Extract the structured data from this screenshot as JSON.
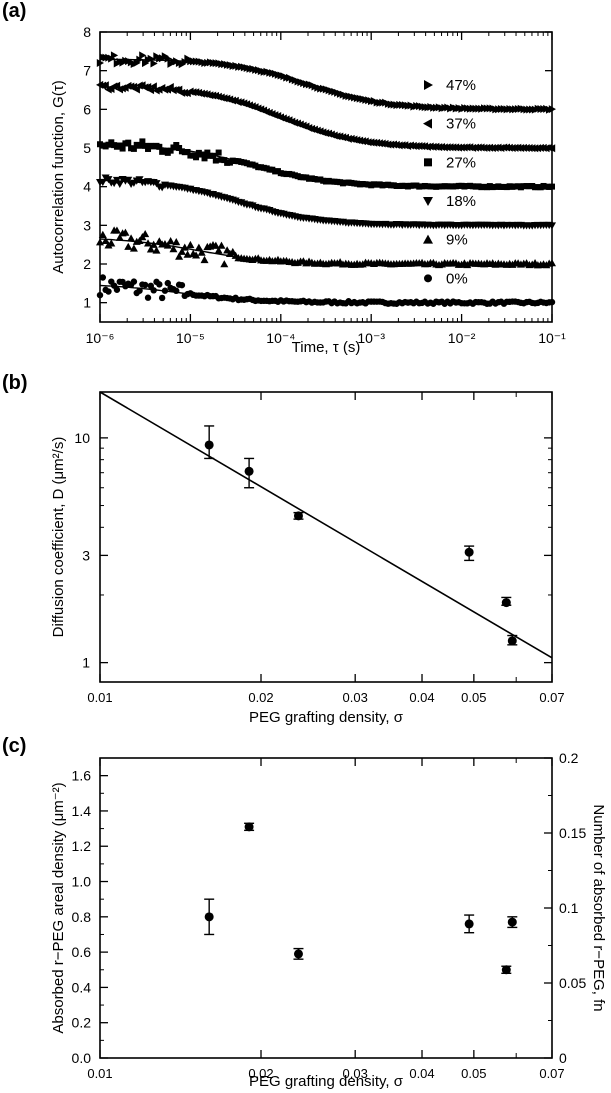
{
  "panels": [
    {
      "letter": "(a)"
    },
    {
      "letter": "(b)"
    },
    {
      "letter": "(c)"
    }
  ],
  "chart_data": [
    {
      "panel": "(a)",
      "type": "scatter",
      "xlabel": "Time, τ (s)",
      "ylabel": "Autocorrelation function, G(τ)",
      "xscale": "log",
      "xlim": [
        1e-06,
        0.1
      ],
      "ylim": [
        0.5,
        8
      ],
      "xticks": [
        "10⁻⁶",
        "10⁻⁵",
        "10⁻⁴",
        "10⁻³",
        "10⁻²",
        "10⁻¹"
      ],
      "yticks": [
        "1",
        "2",
        "3",
        "4",
        "5",
        "6",
        "7",
        "8"
      ],
      "grid": false,
      "legend_placement": "inline-right",
      "series": [
        {
          "name": "0%",
          "marker": "circle",
          "baseline": 1,
          "amplitude": 0.5,
          "tau_d": 8e-06,
          "noise": 0.25,
          "noise_until": 9e-06
        },
        {
          "name": "9%",
          "marker": "triangle-up",
          "baseline": 2,
          "amplitude": 0.7,
          "tau_d": 1.2e-05,
          "noise": 0.25,
          "noise_until": 3e-05
        },
        {
          "name": "18%",
          "marker": "triangle-down",
          "baseline": 3,
          "amplitude": 1.2,
          "tau_d": 3.5e-05,
          "noise": 0.08,
          "noise_until": 5e-06
        },
        {
          "name": "27%",
          "marker": "square",
          "baseline": 4,
          "amplitude": 1.1,
          "tau_d": 5e-05,
          "noise": 0.15,
          "noise_until": 3e-05
        },
        {
          "name": "37%",
          "marker": "triangle-left",
          "baseline": 5,
          "amplitude": 1.6,
          "tau_d": 0.0001,
          "noise": 0.07,
          "noise_until": 1e-05
        },
        {
          "name": "47%",
          "marker": "triangle-right",
          "baseline": 6,
          "amplitude": 1.3,
          "tau_d": 0.0002,
          "noise": 0.12,
          "noise_until": 1e-05
        }
      ]
    },
    {
      "panel": "(b)",
      "type": "scatter",
      "xlabel": "PEG grafting density, σ",
      "ylabel": "Diffusion coefficient, D (μm²/s)",
      "xscale": "log",
      "yscale": "log",
      "xlim": [
        0.01,
        0.07
      ],
      "ylim": [
        0.82,
        16
      ],
      "xticks": [
        "0.01",
        "0.02",
        "0.03",
        "0.04",
        "0.05",
        "0.07"
      ],
      "yticks": [
        "1",
        "3",
        "10"
      ],
      "grid": false,
      "points": [
        {
          "x": 0.016,
          "y": 9.3,
          "err": [
            8.1,
            11.3
          ]
        },
        {
          "x": 0.019,
          "y": 7.1,
          "err": [
            6.0,
            8.1
          ]
        },
        {
          "x": 0.0235,
          "y": 4.5,
          "err": [
            4.35,
            4.65
          ]
        },
        {
          "x": 0.049,
          "y": 3.1,
          "err": [
            2.85,
            3.3
          ]
        },
        {
          "x": 0.0575,
          "y": 1.85,
          "err": [
            1.8,
            1.95
          ]
        },
        {
          "x": 0.059,
          "y": 1.25,
          "err": [
            1.2,
            1.32
          ]
        }
      ],
      "fit_line": {
        "x": [
          0.01,
          0.07
        ],
        "y": [
          16,
          1.05
        ]
      }
    },
    {
      "panel": "(c)",
      "type": "scatter",
      "xlabel": "PEG grafting density, σ",
      "ylabel": "Absorbed r−PEG areal density (μm⁻²)",
      "y2label": "Number of absorbed r−PEG, fn",
      "xscale": "log",
      "xlim": [
        0.01,
        0.07
      ],
      "ylim": [
        0,
        1.7
      ],
      "y2lim": [
        0,
        0.2
      ],
      "xticks": [
        "0.01",
        "0.02",
        "0.03",
        "0.04",
        "0.05",
        "0.07"
      ],
      "yticks": [
        "0.0",
        "0.2",
        "0.4",
        "0.6",
        "0.8",
        "1.0",
        "1.2",
        "1.4",
        "1.6"
      ],
      "y2ticks": [
        "0",
        "0.05",
        "0.1",
        "0.15",
        "0.2"
      ],
      "grid": false,
      "points": [
        {
          "x": 0.016,
          "y": 0.8,
          "err": [
            0.7,
            0.9
          ]
        },
        {
          "x": 0.019,
          "y": 1.31,
          "err": [
            1.29,
            1.33
          ]
        },
        {
          "x": 0.0235,
          "y": 0.59,
          "err": [
            0.56,
            0.62
          ]
        },
        {
          "x": 0.049,
          "y": 0.76,
          "err": [
            0.71,
            0.81
          ]
        },
        {
          "x": 0.0575,
          "y": 0.5,
          "err": [
            0.48,
            0.52
          ]
        },
        {
          "x": 0.059,
          "y": 0.77,
          "err": [
            0.74,
            0.8
          ]
        }
      ]
    }
  ]
}
